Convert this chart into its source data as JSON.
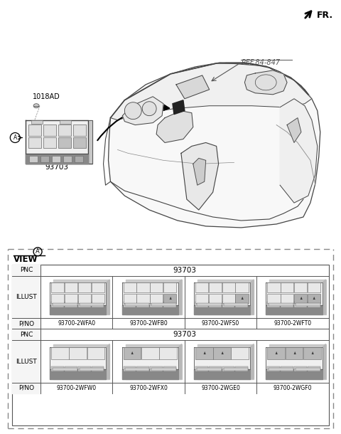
{
  "bg_color": "#ffffff",
  "fig_width": 4.8,
  "fig_height": 6.1,
  "dpi": 100,
  "fr_label": "FR.",
  "ref_label": "REF.84-847",
  "part_number_main": "93703",
  "screw_label": "1018AD",
  "view_label": "VIEW",
  "table": {
    "pno_row1": [
      "93700-2WFA0",
      "93700-2WFB0",
      "93700-2WFS0",
      "93700-2WFT0"
    ],
    "pno_row2": [
      "93700-2WFW0",
      "93700-2WFX0",
      "93700-2WGE0",
      "93700-2WGF0"
    ],
    "pnc_value": "93703"
  },
  "text_color": "#000000",
  "line_color": "#444444"
}
